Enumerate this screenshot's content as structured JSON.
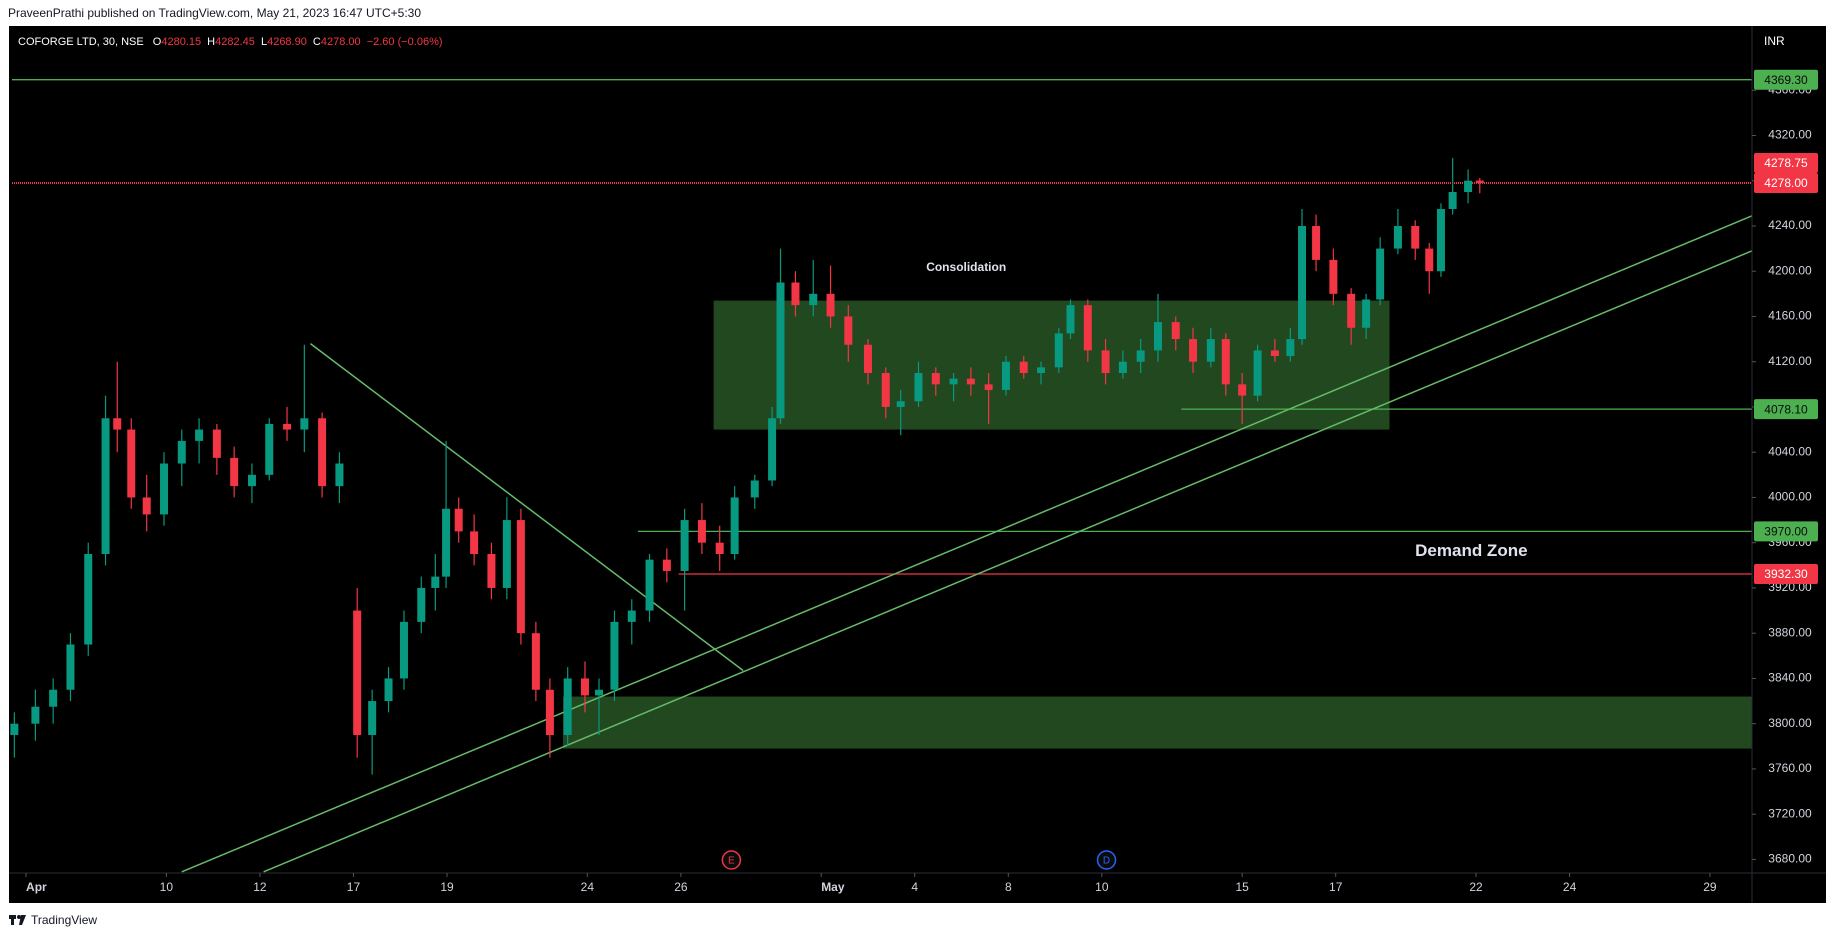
{
  "header": {
    "text": "PraveenPrathi published on TradingView.com, May 21, 2023 16:47 UTC+5:30"
  },
  "footer": {
    "brand": "TradingView"
  },
  "chart_data": {
    "type": "candlestick",
    "symbol": "COFORGE LTD, 30, NSE",
    "ohlc": [
      {
        "key": "O",
        "value": "4280.15"
      },
      {
        "key": "H",
        "value": "4282.45"
      },
      {
        "key": "L",
        "value": "4268.90"
      },
      {
        "key": "C",
        "value": "4278.00"
      }
    ],
    "change": "−2.60 (−0.06%)",
    "currency": "INR",
    "up_color": "#089981",
    "down_color": "#f23645",
    "grid": false,
    "xlim": [
      -0.3,
      36.9
    ],
    "xticks": [
      {
        "value": 0,
        "label": "Apr"
      },
      {
        "value": 3,
        "label": "10"
      },
      {
        "value": 5,
        "label": "12"
      },
      {
        "value": 7,
        "label": "17"
      },
      {
        "value": 9,
        "label": "19"
      },
      {
        "value": 12,
        "label": "24"
      },
      {
        "value": 14,
        "label": "26"
      },
      {
        "value": 17,
        "label": "May"
      },
      {
        "value": 19,
        "label": "4"
      },
      {
        "value": 21,
        "label": "8"
      },
      {
        "value": 23,
        "label": "10"
      },
      {
        "value": 26,
        "label": "15"
      },
      {
        "value": 28,
        "label": "17"
      },
      {
        "value": 31,
        "label": "22"
      },
      {
        "value": 33,
        "label": "24"
      },
      {
        "value": 36,
        "label": "29"
      }
    ],
    "ylim": [
      3668,
      4415
    ],
    "yticks": [
      {
        "value": 3680,
        "label": "3680.00"
      },
      {
        "value": 3720,
        "label": "3720.00"
      },
      {
        "value": 3760,
        "label": "3760.00"
      },
      {
        "value": 3800,
        "label": "3800.00"
      },
      {
        "value": 3840,
        "label": "3840.00"
      },
      {
        "value": 3880,
        "label": "3880.00"
      },
      {
        "value": 3920,
        "label": "3920.00"
      },
      {
        "value": 3960,
        "label": "3960.00"
      },
      {
        "value": 4000,
        "label": "4000.00"
      },
      {
        "value": 4040,
        "label": "4040.00"
      },
      {
        "value": 4080,
        "label": "4080.00"
      },
      {
        "value": 4120,
        "label": "4120.00"
      },
      {
        "value": 4160,
        "label": "4160.00"
      },
      {
        "value": 4200,
        "label": "4200.00"
      },
      {
        "value": 4240,
        "label": "4240.00"
      },
      {
        "value": 4280,
        "label": "4280.00"
      },
      {
        "value": 4320,
        "label": "4320.00"
      },
      {
        "value": 4360,
        "label": "4360.00"
      }
    ],
    "candles": [
      [
        -0.25,
        3790,
        3810,
        3770,
        3800
      ],
      [
        0.2,
        3800,
        3830,
        3785,
        3815
      ],
      [
        0.58,
        3815,
        3840,
        3800,
        3830
      ],
      [
        0.95,
        3830,
        3880,
        3820,
        3870
      ],
      [
        1.33,
        3870,
        3960,
        3860,
        3950
      ],
      [
        1.7,
        3950,
        4090,
        3940,
        4070
      ],
      [
        1.95,
        4070,
        4120,
        4040,
        4060
      ],
      [
        2.25,
        4060,
        4070,
        3990,
        4000
      ],
      [
        2.58,
        4000,
        4020,
        3970,
        3985
      ],
      [
        2.95,
        3985,
        4040,
        3975,
        4030
      ],
      [
        3.33,
        4030,
        4060,
        4010,
        4050
      ],
      [
        3.7,
        4050,
        4070,
        4030,
        4060
      ],
      [
        4.08,
        4060,
        4065,
        4020,
        4035
      ],
      [
        4.45,
        4035,
        4045,
        4000,
        4010
      ],
      [
        4.83,
        4010,
        4030,
        3995,
        4020
      ],
      [
        5.2,
        4020,
        4070,
        4015,
        4065
      ],
      [
        5.58,
        4065,
        4080,
        4050,
        4060
      ],
      [
        5.95,
        4060,
        4135,
        4040,
        4070
      ],
      [
        6.33,
        4070,
        4075,
        4000,
        4010
      ],
      [
        6.7,
        4010,
        4040,
        3995,
        4030
      ],
      [
        7.08,
        3900,
        3920,
        3770,
        3790
      ],
      [
        7.4,
        3790,
        3830,
        3755,
        3820
      ],
      [
        7.75,
        3820,
        3850,
        3810,
        3840
      ],
      [
        8.08,
        3840,
        3900,
        3830,
        3890
      ],
      [
        8.45,
        3890,
        3930,
        3880,
        3920
      ],
      [
        8.75,
        3920,
        3950,
        3900,
        3930
      ],
      [
        8.98,
        3930,
        4050,
        3920,
        3990
      ],
      [
        9.25,
        3990,
        4000,
        3960,
        3970
      ],
      [
        9.58,
        3970,
        3985,
        3940,
        3950
      ],
      [
        9.95,
        3950,
        3960,
        3910,
        3920
      ],
      [
        10.28,
        3920,
        4000,
        3910,
        3980
      ],
      [
        10.58,
        3980,
        3990,
        3870,
        3880
      ],
      [
        10.9,
        3880,
        3890,
        3820,
        3830
      ],
      [
        11.2,
        3830,
        3840,
        3770,
        3790
      ],
      [
        11.58,
        3790,
        3850,
        3780,
        3840
      ],
      [
        11.95,
        3840,
        3855,
        3810,
        3825
      ],
      [
        12.25,
        3825,
        3840,
        3790,
        3830
      ],
      [
        12.58,
        3830,
        3900,
        3820,
        3890
      ],
      [
        12.95,
        3890,
        3910,
        3870,
        3900
      ],
      [
        13.33,
        3900,
        3950,
        3890,
        3945
      ],
      [
        13.7,
        3945,
        3955,
        3925,
        3935
      ],
      [
        14.08,
        3935,
        3990,
        3900,
        3980
      ],
      [
        14.45,
        3980,
        3995,
        3950,
        3960
      ],
      [
        14.83,
        3960,
        3975,
        3935,
        3950
      ],
      [
        15.15,
        3950,
        4010,
        3945,
        4000
      ],
      [
        15.58,
        4000,
        4020,
        3990,
        4015
      ],
      [
        15.95,
        4015,
        4080,
        4010,
        4070
      ],
      [
        16.13,
        4070,
        4220,
        4065,
        4190
      ],
      [
        16.45,
        4190,
        4200,
        4160,
        4170
      ],
      [
        16.83,
        4170,
        4210,
        4160,
        4180
      ],
      [
        17.2,
        4180,
        4205,
        4150,
        4160
      ],
      [
        17.58,
        4160,
        4170,
        4120,
        4135
      ],
      [
        18.0,
        4135,
        4140,
        4100,
        4110
      ],
      [
        18.38,
        4110,
        4115,
        4070,
        4080
      ],
      [
        18.7,
        4080,
        4095,
        4055,
        4085
      ],
      [
        19.08,
        4085,
        4120,
        4080,
        4110
      ],
      [
        19.45,
        4110,
        4115,
        4090,
        4100
      ],
      [
        19.83,
        4100,
        4110,
        4085,
        4105
      ],
      [
        20.2,
        4105,
        4115,
        4090,
        4100
      ],
      [
        20.58,
        4100,
        4110,
        4065,
        4095
      ],
      [
        20.95,
        4095,
        4125,
        4090,
        4120
      ],
      [
        21.33,
        4120,
        4125,
        4105,
        4110
      ],
      [
        21.7,
        4110,
        4120,
        4100,
        4115
      ],
      [
        22.08,
        4115,
        4150,
        4110,
        4145
      ],
      [
        22.33,
        4145,
        4175,
        4140,
        4170
      ],
      [
        22.7,
        4170,
        4175,
        4120,
        4130
      ],
      [
        23.08,
        4130,
        4140,
        4100,
        4110
      ],
      [
        23.45,
        4110,
        4130,
        4105,
        4120
      ],
      [
        23.83,
        4120,
        4140,
        4110,
        4130
      ],
      [
        24.2,
        4130,
        4180,
        4120,
        4155
      ],
      [
        24.58,
        4155,
        4160,
        4130,
        4140
      ],
      [
        24.95,
        4140,
        4150,
        4110,
        4120
      ],
      [
        25.33,
        4120,
        4150,
        4115,
        4140
      ],
      [
        25.65,
        4140,
        4145,
        4090,
        4100
      ],
      [
        26.0,
        4100,
        4110,
        4065,
        4090
      ],
      [
        26.33,
        4090,
        4135,
        4085,
        4130
      ],
      [
        26.7,
        4130,
        4140,
        4120,
        4125
      ],
      [
        27.03,
        4125,
        4150,
        4120,
        4140
      ],
      [
        27.28,
        4140,
        4255,
        4135,
        4240
      ],
      [
        27.58,
        4240,
        4250,
        4200,
        4210
      ],
      [
        27.95,
        4210,
        4220,
        4170,
        4180
      ],
      [
        28.33,
        4180,
        4185,
        4135,
        4150
      ],
      [
        28.65,
        4150,
        4180,
        4140,
        4175
      ],
      [
        28.95,
        4175,
        4230,
        4170,
        4220
      ],
      [
        29.33,
        4220,
        4255,
        4215,
        4240
      ],
      [
        29.7,
        4240,
        4245,
        4210,
        4220
      ],
      [
        30.0,
        4220,
        4225,
        4180,
        4200
      ],
      [
        30.25,
        4200,
        4260,
        4195,
        4255
      ],
      [
        30.5,
        4255,
        4300,
        4250,
        4270
      ],
      [
        30.83,
        4270,
        4290,
        4260,
        4280
      ],
      [
        31.08,
        4280.15,
        4282.45,
        4268.9,
        4278
      ]
    ],
    "zone_color": "#22481f",
    "zones": [
      {
        "x": [
          14.7,
          29.15
        ],
        "y": [
          4060,
          4174
        ]
      },
      {
        "x": [
          11.48,
          36.9
        ],
        "y": [
          3778,
          3824
        ]
      }
    ],
    "trendline_color": "#66bb6a",
    "trendlines": [
      {
        "x": [
          6.08,
          15.33
        ],
        "y": [
          4136,
          3847
        ]
      },
      {
        "x": [
          3.33,
          36.9
        ],
        "y": [
          3669,
          4249
        ]
      },
      {
        "x": [
          5.08,
          36.9
        ],
        "y": [
          3669,
          4218
        ]
      }
    ],
    "annotations": [
      {
        "text": "Consolidation",
        "x": 20.1,
        "y": 4203,
        "size": 12
      },
      {
        "text": "Demand Zone",
        "x": 30.9,
        "y": 3952,
        "size": 17
      }
    ],
    "levels": [
      {
        "value": 4369.3,
        "label": "4369.30",
        "color": "#4caf50",
        "text_color": "#0b0b0b"
      },
      {
        "value": 4278.75,
        "label": "4278.75",
        "color": "#f23645",
        "text_color": "#ffffff",
        "line": false
      },
      {
        "value": 4278,
        "label": "4278.00",
        "color": "#f23645",
        "text_color": "#ffffff",
        "style": "dotted"
      },
      {
        "value": 4078.1,
        "label": "4078.10",
        "color": "#4caf50",
        "text_color": "#0b0b0b",
        "from": 24.7
      },
      {
        "value": 3970,
        "label": "3970.00",
        "color": "#4caf50",
        "text_color": "#0b0b0b",
        "from": 13.08
      },
      {
        "value": 3932.3,
        "label": "3932.30",
        "color": "#f23645",
        "text_color": "#ffffff",
        "from": 13.95
      }
    ],
    "events": [
      {
        "x": 15.08,
        "label": "E",
        "color": "#f23645"
      },
      {
        "x": 23.1,
        "label": "D",
        "color": "#2962ff"
      }
    ]
  }
}
